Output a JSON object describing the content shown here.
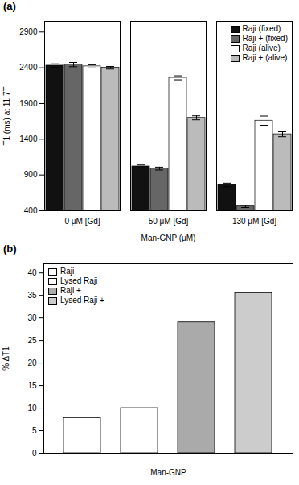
{
  "chart_data": [
    {
      "type": "bar",
      "title": "(a)",
      "categories": [
        "0 μM [Gd]",
        "50 μM [Gd]",
        "130 μM [Gd]"
      ],
      "series": [
        {
          "name": "Raji (fixed)",
          "color": "#111111",
          "values": [
            2430,
            1020,
            760
          ],
          "errors": [
            25,
            20,
            25
          ]
        },
        {
          "name": "Raji + (fixed)",
          "color": "#666666",
          "values": [
            2445,
            990,
            460
          ],
          "errors": [
            30,
            20,
            15
          ]
        },
        {
          "name": "Raji (alive)",
          "color": "#ffffff",
          "values": [
            2420,
            2260,
            1660
          ],
          "errors": [
            22,
            28,
            65
          ]
        },
        {
          "name": "Raji + (alive)",
          "color": "#bbbbbb",
          "values": [
            2400,
            1700,
            1470
          ],
          "errors": [
            18,
            28,
            35
          ]
        }
      ],
      "xlabel": "Man-GNP (μM)",
      "ylabel": "T1 (ms) at 11.7T",
      "ylim": [
        400,
        3050
      ],
      "yticks": [
        400,
        900,
        1400,
        1900,
        2400,
        2900
      ],
      "legend": "upper right"
    },
    {
      "type": "bar",
      "title": "(b)",
      "categories": [
        "Raji",
        "Lysed Raji",
        "Raji +",
        "Lysed Raji +"
      ],
      "values": [
        7.8,
        10.0,
        29.0,
        35.5
      ],
      "colors": [
        "#ffffff",
        "#ffffff",
        "#aaaaaa",
        "#cccccc"
      ],
      "xlabel": "Man-GNP",
      "ylabel": "% ΔT1",
      "ylim": [
        0,
        42
      ],
      "yticks": [
        0,
        5,
        10,
        15,
        20,
        25,
        30,
        35,
        40
      ],
      "legend": "upper left",
      "tick_labels": "y"
    }
  ]
}
